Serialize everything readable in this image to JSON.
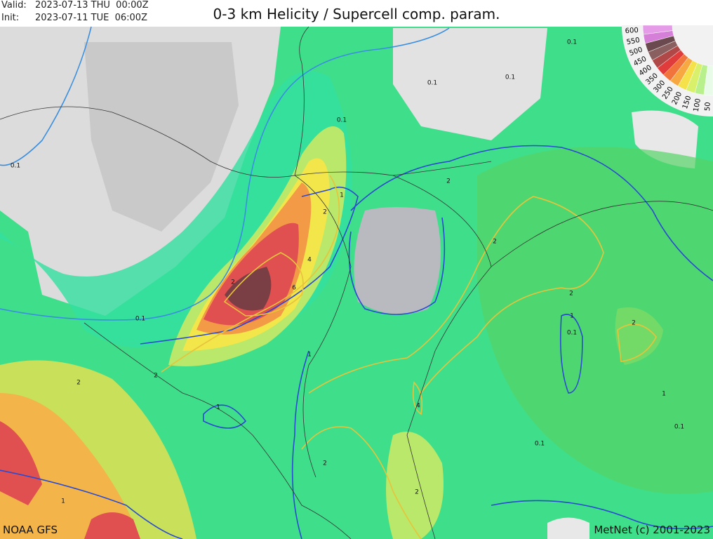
{
  "header": {
    "valid_label": "Valid:",
    "valid": "2023-07-13 THU  00:00Z",
    "init_label": "Init:",
    "init": "2023-07-11 TUE  06:00Z",
    "title": "0-3 km Helicity / Supercell comp. param."
  },
  "legend": {
    "labels": [
      "600",
      "550",
      "500",
      "450",
      "400",
      "350",
      "300",
      "250",
      "200",
      "150",
      "100",
      "50"
    ]
  },
  "contour_labels": [
    "0.1",
    "0.1",
    "0.1",
    "0.1",
    "0.1",
    "0.1",
    "1",
    "2",
    "4",
    "6",
    "2",
    "1",
    "2",
    "2",
    "2",
    "1",
    "0.1",
    "2",
    "1",
    "4",
    "2",
    "2",
    "0.1",
    "0.1",
    "1",
    "2",
    "2",
    "1"
  ],
  "footer": {
    "source": "NOAA GFS",
    "credit": "MetNet (c) 2001-2023"
  }
}
